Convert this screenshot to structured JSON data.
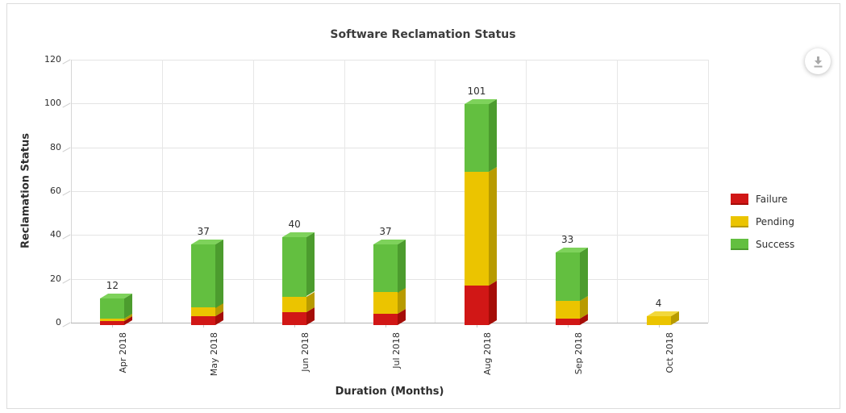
{
  "title": "Software Reclamation Status",
  "toolbar": {
    "download_label": "download-chart"
  },
  "chart_data": {
    "type": "bar",
    "stacked": true,
    "projection": "3d-column",
    "title": "Software Reclamation Status",
    "xlabel": "Duration (Months)",
    "ylabel": "Reclamation Status",
    "categories": [
      "Apr 2018",
      "May 2018",
      "Jun 2018",
      "Jul 2018",
      "Aug 2018",
      "Sep 2018",
      "Oct 2018"
    ],
    "series": [
      {
        "name": "Failure",
        "color": "#d11716",
        "side_color": "#a50d08",
        "top_color": "#e2554b",
        "values": [
          2,
          4,
          6,
          5,
          18,
          3,
          0
        ]
      },
      {
        "name": "Pending",
        "color": "#ebc400",
        "side_color": "#b89b00",
        "top_color": "#f2d83c",
        "values": [
          1,
          4,
          7,
          10,
          52,
          8,
          4
        ]
      },
      {
        "name": "Success",
        "color": "#63bf40",
        "side_color": "#4c9c2e",
        "top_color": "#7ed25b",
        "values": [
          9,
          29,
          27,
          22,
          31,
          22,
          0
        ]
      }
    ],
    "totals": [
      12,
      37,
      40,
      37,
      101,
      33,
      4
    ],
    "ylim": [
      0,
      120
    ],
    "ytick_step": 20,
    "grid": true,
    "legend_position": "right"
  }
}
